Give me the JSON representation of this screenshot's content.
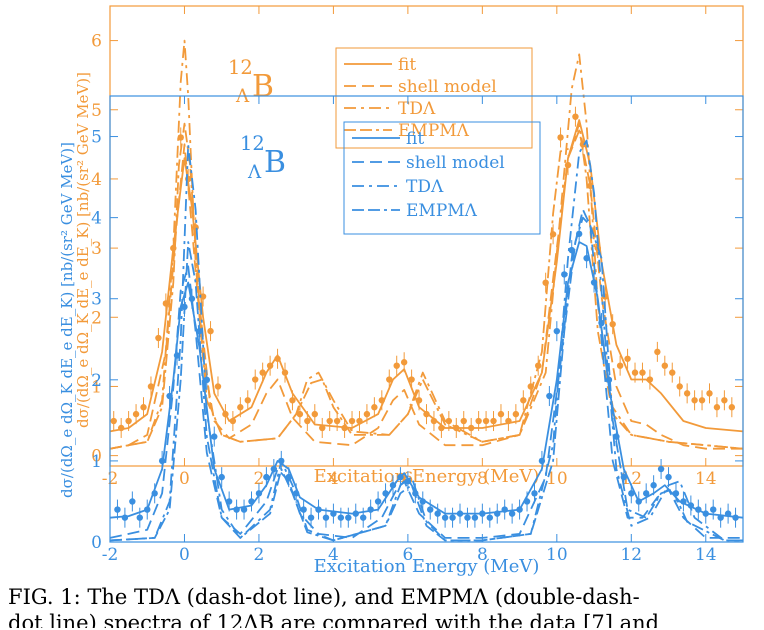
{
  "chart_data": [
    {
      "type": "line",
      "id": "orange",
      "color": "#f29a3a",
      "xlim": [
        -2,
        15
      ],
      "ylim": [
        -0.15,
        6.5
      ],
      "xlabel": "Excitation Energy  (MeV)",
      "ylabel": "dσ/(dΩ_e dΩ_K dE_e dE_K) [nb/(sr² GeV MeV)]",
      "xticks": [
        "-2",
        "0",
        "2",
        "4",
        "6",
        "8",
        "10",
        "12",
        "14"
      ],
      "xtick_values": [
        -2,
        0,
        2,
        4,
        6,
        8,
        10,
        12,
        14
      ],
      "yticks": [
        "0",
        "1",
        "2",
        "3",
        "4",
        "5",
        "6"
      ],
      "ytick_values": [
        0,
        1,
        2,
        3,
        4,
        5,
        6
      ],
      "annotation": "12ΛB",
      "legend": {
        "position": "top-center",
        "entries": [
          "fit",
          "shell model",
          "TDΛ",
          "EMPMΛ"
        ]
      },
      "series": [
        {
          "name": "fit",
          "style": "solid",
          "x": [
            -2,
            -1.5,
            -1,
            -0.6,
            -0.3,
            0,
            0.2,
            0.5,
            0.8,
            1.2,
            1.8,
            2.2,
            2.5,
            2.9,
            3.5,
            4.5,
            5.2,
            5.6,
            5.9,
            6.3,
            7,
            8,
            9,
            9.6,
            10,
            10.3,
            10.6,
            10.9,
            11.2,
            11.6,
            12,
            12.4,
            12.8,
            13.4,
            14,
            15
          ],
          "y": [
            0.35,
            0.4,
            0.6,
            1.5,
            3.0,
            4.3,
            3.6,
            2.0,
            0.9,
            0.5,
            0.7,
            1.2,
            1.45,
            0.9,
            0.45,
            0.4,
            0.6,
            1.1,
            1.25,
            0.7,
            0.4,
            0.4,
            0.5,
            1.2,
            2.8,
            4.3,
            4.85,
            4.2,
            2.8,
            1.6,
            1.1,
            1.1,
            0.9,
            0.5,
            0.4,
            0.35
          ]
        },
        {
          "name": "shell model",
          "style": "dashed",
          "x": [
            -2,
            -1.5,
            -1,
            -0.5,
            -0.2,
            0,
            0.2,
            0.5,
            0.8,
            1.2,
            1.8,
            2.2,
            2.5,
            2.9,
            3.5,
            4.5,
            5.2,
            5.6,
            5.9,
            6.3,
            7,
            8,
            9,
            9.6,
            10,
            10.3,
            10.6,
            10.9,
            11.2,
            11.6,
            12,
            12.4,
            12.8,
            13.4,
            14,
            15
          ],
          "y": [
            0.1,
            0.15,
            0.3,
            1.5,
            3.4,
            4.5,
            3.3,
            1.4,
            0.5,
            0.25,
            0.45,
            0.9,
            1.1,
            0.55,
            0.2,
            0.15,
            0.4,
            0.8,
            0.95,
            0.45,
            0.15,
            0.15,
            0.3,
            1.2,
            3.0,
            4.3,
            4.7,
            3.9,
            2.3,
            1.0,
            0.5,
            0.45,
            0.3,
            0.15,
            0.1,
            0.1
          ]
        },
        {
          "name": "TDΛ",
          "style": "dash-dot",
          "x": [
            -2,
            -1,
            -0.6,
            -0.3,
            -0.1,
            0,
            0.1,
            0.3,
            0.6,
            1,
            1.5,
            2.5,
            3,
            3.3,
            3.6,
            4,
            4.5,
            5.5,
            6,
            6.4,
            7,
            8,
            9,
            9.7,
            10.1,
            10.4,
            10.6,
            10.8,
            11.1,
            11.5,
            12,
            12.5,
            13,
            14,
            15
          ],
          "y": [
            0.1,
            0.2,
            0.8,
            3.0,
            5.4,
            6.0,
            5.2,
            2.8,
            0.8,
            0.3,
            0.2,
            0.25,
            0.6,
            1.1,
            1.2,
            0.8,
            0.35,
            0.3,
            0.6,
            1.2,
            0.5,
            0.2,
            0.3,
            1.2,
            3.5,
            5.3,
            5.8,
            4.8,
            2.2,
            0.7,
            0.3,
            0.25,
            0.2,
            0.15,
            0.1
          ]
        },
        {
          "name": "EMPMΛ",
          "style": "double-dash-dot",
          "x": [
            -2,
            -1,
            -0.6,
            -0.3,
            -0.15,
            0,
            0.15,
            0.4,
            0.7,
            1,
            1.5,
            2.5,
            3,
            3.4,
            3.7,
            4,
            4.5,
            5.5,
            6,
            6.4,
            7,
            8,
            9,
            9.6,
            9.9,
            10.1,
            10.4,
            10.6,
            10.8,
            11.1,
            11.5,
            12,
            12.5,
            13,
            14,
            15
          ],
          "y": [
            0.1,
            0.2,
            0.7,
            2.5,
            4.2,
            4.8,
            4.2,
            2.2,
            0.7,
            0.3,
            0.2,
            0.25,
            0.6,
            1.05,
            1.1,
            0.7,
            0.3,
            0.3,
            0.6,
            1.1,
            0.45,
            0.2,
            0.3,
            1.5,
            3.5,
            4.4,
            4.45,
            4.8,
            4.0,
            1.8,
            0.6,
            0.3,
            0.25,
            0.2,
            0.15,
            0.1
          ]
        },
        {
          "name": "data",
          "style": "points",
          "x": [
            -1.9,
            -1.7,
            -1.5,
            -1.3,
            -1.1,
            -0.9,
            -0.7,
            -0.5,
            -0.3,
            -0.1,
            0.1,
            0.3,
            0.5,
            0.7,
            0.9,
            1.1,
            1.3,
            1.5,
            1.7,
            1.9,
            2.1,
            2.3,
            2.5,
            2.7,
            2.9,
            3.1,
            3.3,
            3.5,
            3.7,
            3.9,
            4.1,
            4.3,
            4.5,
            4.7,
            4.9,
            5.1,
            5.3,
            5.5,
            5.7,
            5.9,
            6.1,
            6.3,
            6.5,
            6.7,
            6.9,
            7.1,
            7.3,
            7.5,
            7.7,
            7.9,
            8.1,
            8.3,
            8.5,
            8.7,
            8.9,
            9.1,
            9.3,
            9.5,
            9.7,
            9.9,
            10.1,
            10.3,
            10.5,
            10.7,
            10.9,
            11.1,
            11.3,
            11.5,
            11.7,
            11.9,
            12.1,
            12.3,
            12.5,
            12.7,
            12.9,
            13.1,
            13.3,
            13.5,
            13.7,
            13.9,
            14.1,
            14.3,
            14.5,
            14.7
          ],
          "y": [
            0.5,
            0.4,
            0.5,
            0.6,
            0.7,
            1.0,
            1.7,
            2.2,
            3.0,
            4.6,
            4.0,
            3.3,
            2.3,
            1.8,
            1.0,
            0.6,
            0.5,
            0.7,
            0.8,
            1.1,
            1.2,
            1.3,
            1.4,
            1.2,
            0.8,
            0.6,
            0.5,
            0.6,
            0.4,
            0.5,
            0.5,
            0.4,
            0.5,
            0.5,
            0.6,
            0.7,
            0.8,
            1.1,
            1.3,
            1.35,
            1.1,
            0.8,
            0.6,
            0.5,
            0.4,
            0.5,
            0.4,
            0.5,
            0.4,
            0.5,
            0.5,
            0.5,
            0.6,
            0.5,
            0.6,
            0.8,
            1.0,
            1.3,
            2.5,
            3.2,
            4.6,
            4.2,
            4.9,
            4.5,
            3.9,
            3.0,
            2.3,
            1.9,
            1.3,
            1.4,
            1.2,
            1.2,
            1.1,
            1.5,
            1.3,
            1.2,
            1.0,
            0.9,
            0.8,
            0.8,
            0.9,
            0.7,
            0.8,
            0.7
          ]
        }
      ]
    },
    {
      "type": "line",
      "id": "blue",
      "color": "#3a8fe0",
      "xlim": [
        -2,
        15
      ],
      "ylim": [
        0,
        5.5
      ],
      "xlabel": "Excitation Energy  (MeV)",
      "ylabel": "dσ/(dΩ_e dΩ_K dE_e dE_K) [nb/(sr² GeV MeV)]",
      "xticks": [
        "-2",
        "0",
        "2",
        "4",
        "6",
        "8",
        "10",
        "12",
        "14"
      ],
      "xtick_values": [
        -2,
        0,
        2,
        4,
        6,
        8,
        10,
        12,
        14
      ],
      "yticks": [
        "0",
        "1",
        "2",
        "3",
        "4",
        "5"
      ],
      "ytick_values": [
        0,
        1,
        2,
        3,
        4,
        5
      ],
      "annotation": "12ΛB",
      "legend": {
        "position": "top-center",
        "entries": [
          "fit",
          "shell model",
          "TDΛ",
          "EMPMΛ"
        ]
      },
      "series": [
        {
          "name": "fit",
          "style": "solid",
          "x": [
            -2,
            -1.5,
            -1,
            -0.6,
            -0.3,
            -0.1,
            0.1,
            0.4,
            0.8,
            1.2,
            1.8,
            2.2,
            2.5,
            2.8,
            3.1,
            3.6,
            4.5,
            5.2,
            5.7,
            5.9,
            6.3,
            7,
            8,
            9,
            9.6,
            10,
            10.3,
            10.6,
            10.8,
            11.1,
            11.4,
            11.8,
            12.2,
            12.6,
            12.9,
            13.3,
            14,
            15
          ],
          "y": [
            0.3,
            0.32,
            0.4,
            0.9,
            2.0,
            2.9,
            3.2,
            2.4,
            0.9,
            0.4,
            0.45,
            0.7,
            1.0,
            0.9,
            0.55,
            0.4,
            0.35,
            0.4,
            0.75,
            0.85,
            0.55,
            0.35,
            0.35,
            0.4,
            0.9,
            2.0,
            3.2,
            3.7,
            3.65,
            3.0,
            1.9,
            0.9,
            0.5,
            0.6,
            0.7,
            0.5,
            0.35,
            0.3
          ]
        },
        {
          "name": "shell model",
          "style": "dashed",
          "x": [
            -2,
            -1,
            -0.6,
            -0.3,
            -0.1,
            0.1,
            0.3,
            0.6,
            1,
            1.5,
            2.2,
            2.5,
            2.8,
            3.1,
            3.6,
            4.5,
            5.3,
            5.7,
            5.9,
            6.3,
            7,
            8,
            9,
            9.7,
            10.1,
            10.4,
            10.7,
            10.9,
            11.2,
            11.5,
            11.9,
            12.3,
            12.7,
            13,
            13.4,
            14,
            15
          ],
          "y": [
            0.05,
            0.15,
            0.6,
            1.9,
            3.1,
            3.4,
            2.6,
            1.1,
            0.3,
            0.1,
            0.5,
            0.9,
            0.75,
            0.35,
            0.1,
            0.05,
            0.3,
            0.65,
            0.75,
            0.35,
            0.05,
            0.05,
            0.1,
            0.8,
            2.2,
            3.5,
            4.1,
            3.9,
            2.5,
            1.0,
            0.3,
            0.3,
            0.55,
            0.65,
            0.3,
            0.05,
            0.05
          ]
        },
        {
          "name": "TDΛ",
          "style": "dash-dot",
          "x": [
            -2,
            -0.8,
            -0.4,
            -0.1,
            0.1,
            0.3,
            0.6,
            1,
            1.5,
            2.3,
            2.6,
            2.9,
            3.3,
            4,
            5.4,
            5.8,
            6.1,
            6.5,
            7,
            8,
            9.3,
            9.9,
            10.3,
            10.6,
            10.8,
            11,
            11.3,
            11.6,
            12,
            12.5,
            13,
            13.3,
            13.7,
            14.5,
            15
          ],
          "y": [
            0.02,
            0.05,
            0.5,
            2.5,
            4.9,
            4.1,
            1.6,
            0.4,
            0.05,
            0.4,
            1.0,
            0.7,
            0.15,
            0.02,
            0.2,
            0.7,
            0.8,
            0.25,
            0.02,
            0.02,
            0.1,
            1.2,
            3.5,
            4.8,
            4.95,
            4.3,
            2.5,
            0.9,
            0.2,
            0.3,
            0.7,
            0.75,
            0.3,
            0.02,
            0.02
          ]
        },
        {
          "name": "EMPMΛ",
          "style": "double-dash-dot",
          "x": [
            -2,
            -0.8,
            -0.4,
            -0.1,
            0.1,
            0.3,
            0.6,
            1,
            1.5,
            2.3,
            2.6,
            2.9,
            3.3,
            4,
            5.4,
            5.8,
            6.1,
            6.5,
            7,
            8,
            9.3,
            9.9,
            10.2,
            10.5,
            10.7,
            10.9,
            11.2,
            11.5,
            11.9,
            12.4,
            12.8,
            13.1,
            13.5,
            14.5,
            15
          ],
          "y": [
            0.02,
            0.05,
            0.4,
            2.0,
            3.7,
            3.2,
            1.3,
            0.3,
            0.05,
            0.35,
            0.9,
            0.6,
            0.12,
            0.02,
            0.2,
            0.6,
            0.7,
            0.2,
            0.02,
            0.02,
            0.1,
            1.0,
            2.6,
            3.7,
            4.0,
            3.9,
            3.5,
            1.5,
            0.4,
            0.3,
            0.6,
            0.65,
            0.25,
            0.02,
            0.02
          ]
        },
        {
          "name": "data",
          "style": "points",
          "x": [
            -1.8,
            -1.6,
            -1.4,
            -1.2,
            -1.0,
            -0.8,
            -0.6,
            -0.4,
            -0.2,
            0.0,
            0.2,
            0.4,
            0.6,
            0.8,
            1.0,
            1.2,
            1.4,
            1.6,
            1.8,
            2.0,
            2.2,
            2.4,
            2.6,
            2.8,
            3.0,
            3.2,
            3.4,
            3.6,
            3.8,
            4.0,
            4.2,
            4.4,
            4.6,
            4.8,
            5.0,
            5.2,
            5.4,
            5.6,
            5.8,
            6.0,
            6.2,
            6.4,
            6.6,
            6.8,
            7.0,
            7.2,
            7.4,
            7.6,
            7.8,
            8.0,
            8.2,
            8.4,
            8.6,
            8.8,
            9.0,
            9.2,
            9.4,
            9.6,
            9.8,
            10.0,
            10.2,
            10.4,
            10.6,
            10.8,
            11.0,
            11.2,
            11.4,
            11.6,
            11.8,
            12.0,
            12.2,
            12.4,
            12.6,
            12.8,
            13.0,
            13.2,
            13.4,
            13.6,
            13.8,
            14.0,
            14.2,
            14.4,
            14.6,
            14.8
          ],
          "y": [
            0.4,
            0.3,
            0.5,
            0.3,
            0.4,
            0.6,
            1.0,
            1.8,
            2.3,
            2.9,
            3.0,
            2.6,
            2.0,
            1.3,
            0.8,
            0.5,
            0.4,
            0.4,
            0.5,
            0.6,
            0.8,
            0.9,
            1.0,
            0.8,
            0.6,
            0.4,
            0.3,
            0.4,
            0.3,
            0.35,
            0.3,
            0.3,
            0.35,
            0.3,
            0.4,
            0.5,
            0.6,
            0.7,
            0.8,
            0.75,
            0.6,
            0.5,
            0.4,
            0.35,
            0.3,
            0.3,
            0.35,
            0.3,
            0.3,
            0.35,
            0.3,
            0.35,
            0.4,
            0.35,
            0.4,
            0.5,
            0.6,
            1.0,
            1.8,
            2.6,
            3.3,
            3.6,
            3.8,
            3.5,
            3.2,
            2.7,
            2.0,
            1.3,
            0.8,
            0.6,
            0.5,
            0.6,
            0.7,
            0.9,
            0.8,
            0.6,
            0.5,
            0.45,
            0.4,
            0.35,
            0.4,
            0.3,
            0.35,
            0.3
          ]
        }
      ]
    }
  ],
  "caption": {
    "line1": "FIG. 1: The TDΛ (dash-dot line), and EMPMΛ (double-dash-",
    "line2": "dot line) spectra of 12ΛB are compared with the data [7] and"
  }
}
